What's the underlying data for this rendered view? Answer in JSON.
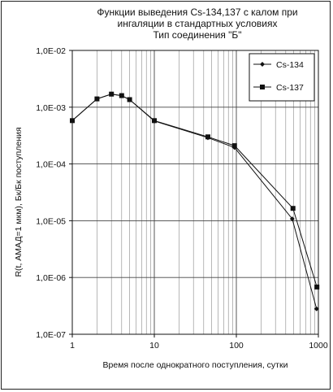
{
  "chart_data": {
    "type": "line",
    "title": [
      "Функции выведения Cs-134,137 с калом при",
      "ингаляции в стандартных условиях",
      "Тип соединения \"Б\""
    ],
    "xlabel": "Время после однократного поступления, сутки",
    "ylabel": "R(t, АМАД=1 мкм), Бк/Бк поступления",
    "x_scale": "log",
    "y_scale": "log",
    "xlim": [
      1,
      1000
    ],
    "ylim": [
      1e-07,
      0.01
    ],
    "x_ticks": [
      1,
      10,
      100,
      1000
    ],
    "x_tick_labels": [
      "1",
      "10",
      "100",
      "1000"
    ],
    "y_ticks": [
      1e-07,
      1e-06,
      1e-05,
      0.0001,
      0.001,
      0.01
    ],
    "y_tick_labels": [
      "1,0E-07",
      "1,0E-06",
      "1,0E-05",
      "1,0E-04",
      "1,0E-03",
      "1,0E-02"
    ],
    "grid": "x-minor-and-major, y-major",
    "legend_position": "top-right",
    "series": [
      {
        "name": "Cs-134",
        "marker": "diamond",
        "x": [
          1,
          2,
          3,
          4,
          5,
          10,
          45,
          95,
          480,
          950
        ],
        "y": [
          0.00058,
          0.0014,
          0.0017,
          0.0016,
          0.00136,
          0.00057,
          0.00029,
          0.000195,
          1.08e-05,
          2.8e-07
        ]
      },
      {
        "name": "Cs-137",
        "marker": "square",
        "x": [
          1,
          2,
          3,
          4,
          5,
          10,
          45,
          95,
          490,
          960
        ],
        "y": [
          0.00058,
          0.0014,
          0.0017,
          0.0016,
          0.00136,
          0.00058,
          0.0003,
          0.00021,
          1.65e-05,
          6.8e-07
        ]
      }
    ]
  }
}
